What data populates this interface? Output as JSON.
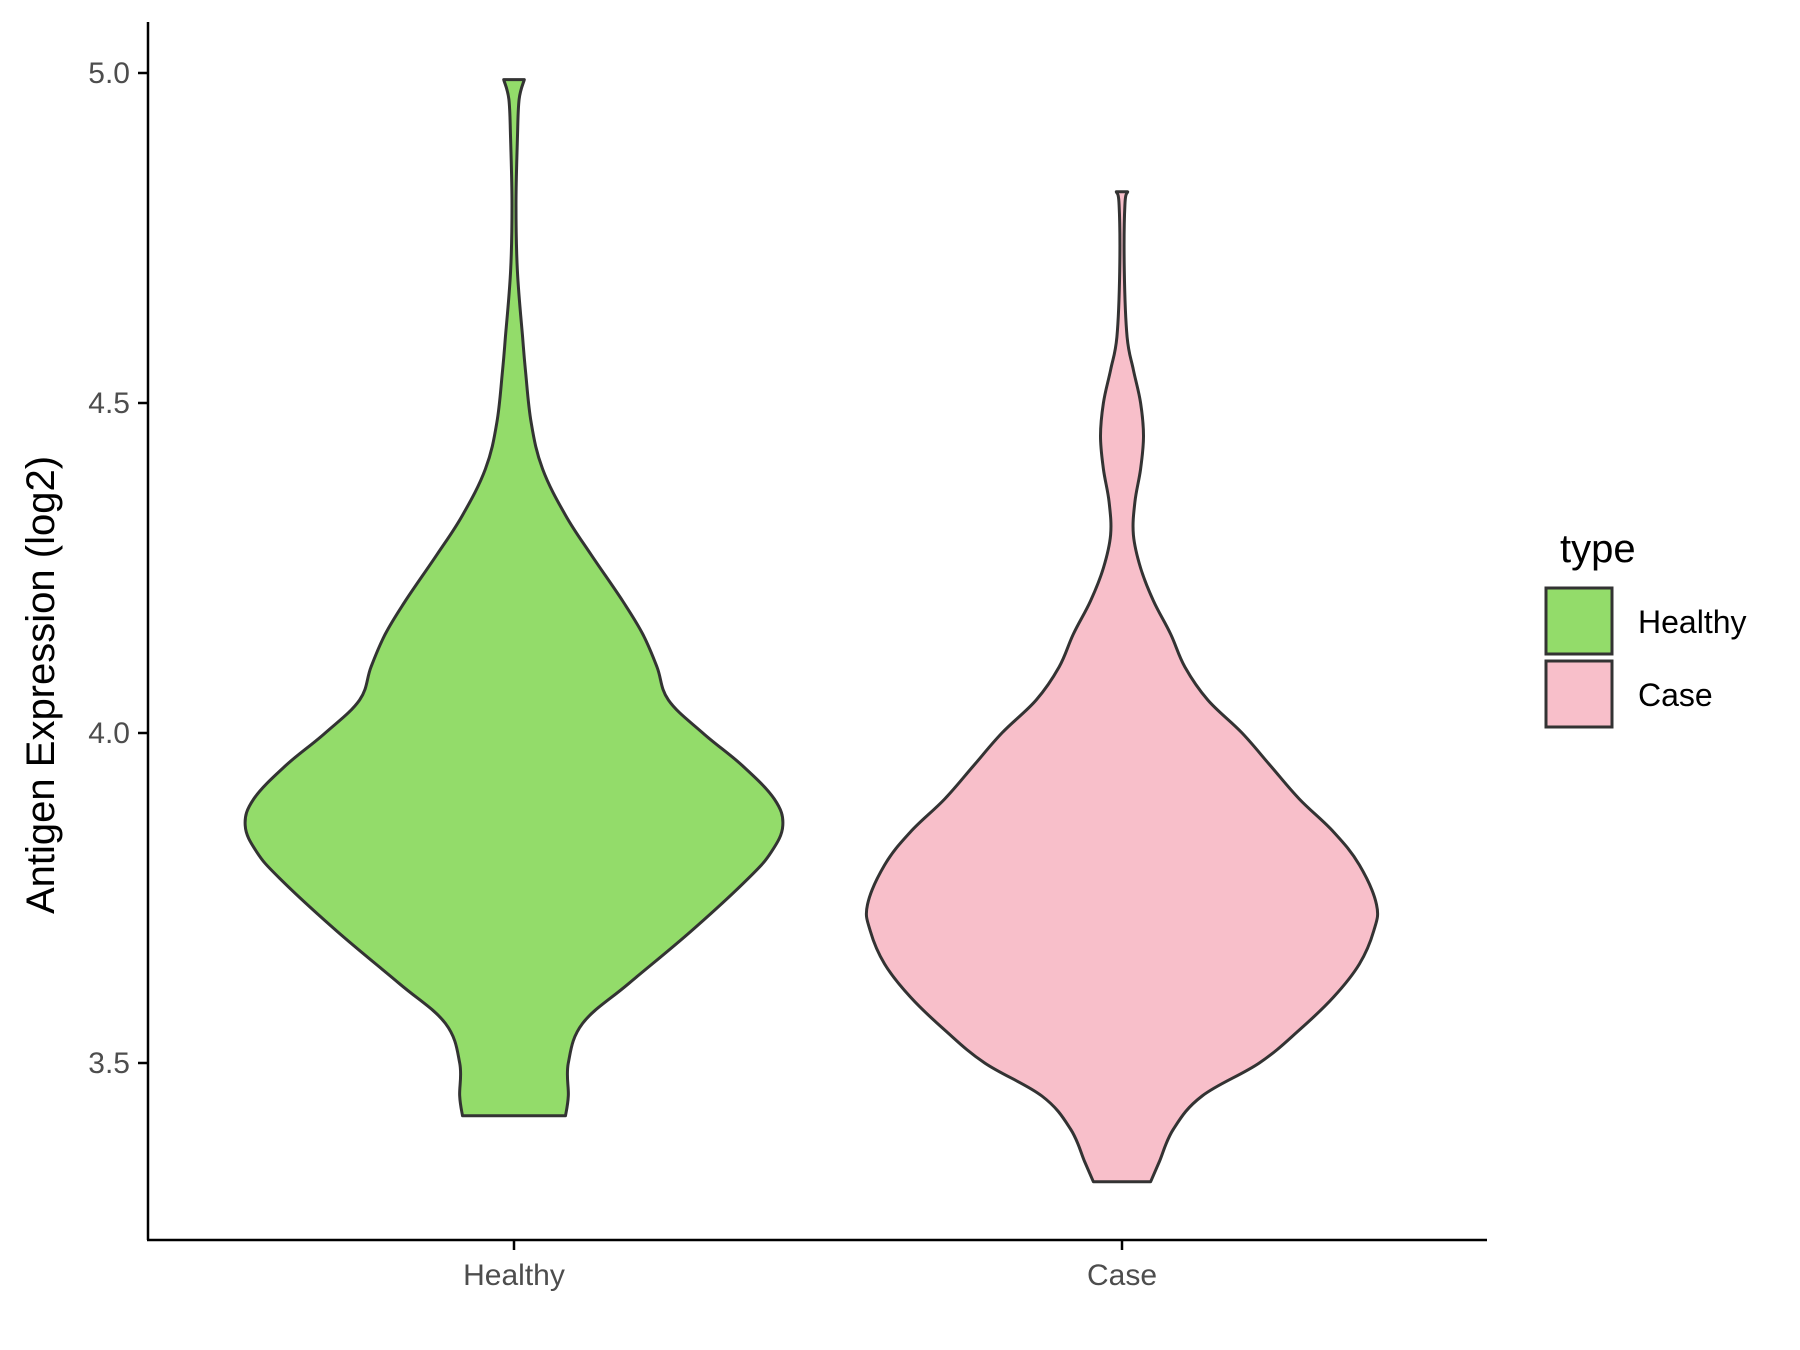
{
  "chart_data": {
    "type": "violin",
    "xlabel": "",
    "ylabel": "Antigen Expression (log2)",
    "ylim": [
      3.22,
      5.08
    ],
    "yticks": [
      "3.5",
      "4.0",
      "4.5",
      "5.0"
    ],
    "categories": [
      "Healthy",
      "Case"
    ],
    "grid": false,
    "legend": {
      "title": "type",
      "placement": "right",
      "entries": [
        "Healthy",
        "Case"
      ]
    },
    "series": [
      {
        "name": "Healthy",
        "color": "#93dc6a",
        "min": 3.42,
        "max": 4.99,
        "profile": [
          [
            3.42,
            0.18
          ],
          [
            3.45,
            0.19
          ],
          [
            3.5,
            0.19
          ],
          [
            3.56,
            0.24
          ],
          [
            3.62,
            0.4
          ],
          [
            3.7,
            0.62
          ],
          [
            3.78,
            0.82
          ],
          [
            3.82,
            0.9
          ],
          [
            3.86,
            0.94
          ],
          [
            3.9,
            0.91
          ],
          [
            3.95,
            0.8
          ],
          [
            4.0,
            0.66
          ],
          [
            4.05,
            0.54
          ],
          [
            4.1,
            0.5
          ],
          [
            4.15,
            0.45
          ],
          [
            4.2,
            0.38
          ],
          [
            4.27,
            0.27
          ],
          [
            4.33,
            0.18
          ],
          [
            4.4,
            0.1
          ],
          [
            4.47,
            0.06
          ],
          [
            4.55,
            0.04
          ],
          [
            4.6,
            0.03
          ],
          [
            4.7,
            0.012
          ],
          [
            4.8,
            0.007
          ],
          [
            4.9,
            0.012
          ],
          [
            4.96,
            0.018
          ],
          [
            4.99,
            0.036
          ]
        ]
      },
      {
        "name": "Case",
        "color": "#f8bfca",
        "min": 3.32,
        "max": 4.82,
        "profile": [
          [
            3.32,
            0.1
          ],
          [
            3.35,
            0.13
          ],
          [
            3.4,
            0.18
          ],
          [
            3.45,
            0.28
          ],
          [
            3.5,
            0.48
          ],
          [
            3.55,
            0.62
          ],
          [
            3.6,
            0.74
          ],
          [
            3.65,
            0.83
          ],
          [
            3.7,
            0.88
          ],
          [
            3.74,
            0.89
          ],
          [
            3.8,
            0.83
          ],
          [
            3.85,
            0.74
          ],
          [
            3.9,
            0.62
          ],
          [
            3.95,
            0.52
          ],
          [
            4.0,
            0.42
          ],
          [
            4.05,
            0.3
          ],
          [
            4.1,
            0.22
          ],
          [
            4.15,
            0.17
          ],
          [
            4.2,
            0.11
          ],
          [
            4.25,
            0.065
          ],
          [
            4.3,
            0.04
          ],
          [
            4.35,
            0.045
          ],
          [
            4.4,
            0.065
          ],
          [
            4.45,
            0.075
          ],
          [
            4.5,
            0.065
          ],
          [
            4.55,
            0.04
          ],
          [
            4.6,
            0.018
          ],
          [
            4.7,
            0.008
          ],
          [
            4.8,
            0.01
          ],
          [
            4.82,
            0.02
          ]
        ]
      }
    ]
  }
}
